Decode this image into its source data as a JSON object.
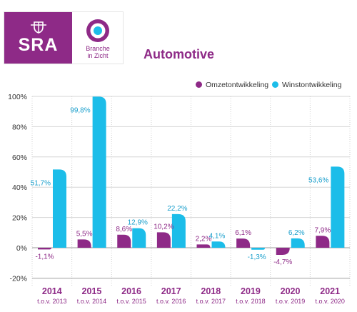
{
  "logo": {
    "sra_text": "SRA",
    "branche_line1": "Branche",
    "branche_line2": "in Zicht"
  },
  "title": "Automotive",
  "legend": {
    "omzet": "Omzetontwikkeling",
    "winst": "Winstontwikkeling"
  },
  "colors": {
    "purple": "#8e2a87",
    "cyan": "#1cbde9",
    "brand": "#8e2a87"
  },
  "chart_data": {
    "type": "bar",
    "title": "Automotive",
    "categories": [
      "2014",
      "2015",
      "2016",
      "2017",
      "2018",
      "2019",
      "2020",
      "2021"
    ],
    "subcategories": [
      "t.o.v. 2013",
      "t.o.v. 2014",
      "t.o.v. 2015",
      "t.o.v. 2016",
      "t.o.v. 2017",
      "t.o.v. 2018",
      "t.o.v. 2019",
      "t.o.v. 2020"
    ],
    "series": [
      {
        "name": "Omzetontwikkeling",
        "color": "#8e2a87",
        "values": [
          -1.1,
          5.5,
          8.6,
          10.2,
          2.2,
          6.1,
          -4.7,
          7.9
        ],
        "labels": [
          "-1,1%",
          "5,5%",
          "8,6%",
          "10,2%",
          "2,2%",
          "6,1%",
          "-4,7%",
          "7,9%"
        ]
      },
      {
        "name": "Winstontwikkeling",
        "color": "#1cbde9",
        "values": [
          51.7,
          99.8,
          12.9,
          22.2,
          4.1,
          -1.3,
          6.2,
          53.6
        ],
        "labels": [
          "51,7%",
          "99,8%",
          "12,9%",
          "22,2%",
          "4,1%",
          "-1,3%",
          "6,2%",
          "53,6%"
        ]
      }
    ],
    "yticks": [
      "-20%",
      "0%",
      "20%",
      "40%",
      "60%",
      "80%",
      "100%"
    ],
    "ylim": [
      -20,
      100
    ],
    "grid": true,
    "legend_position": "top-right"
  }
}
